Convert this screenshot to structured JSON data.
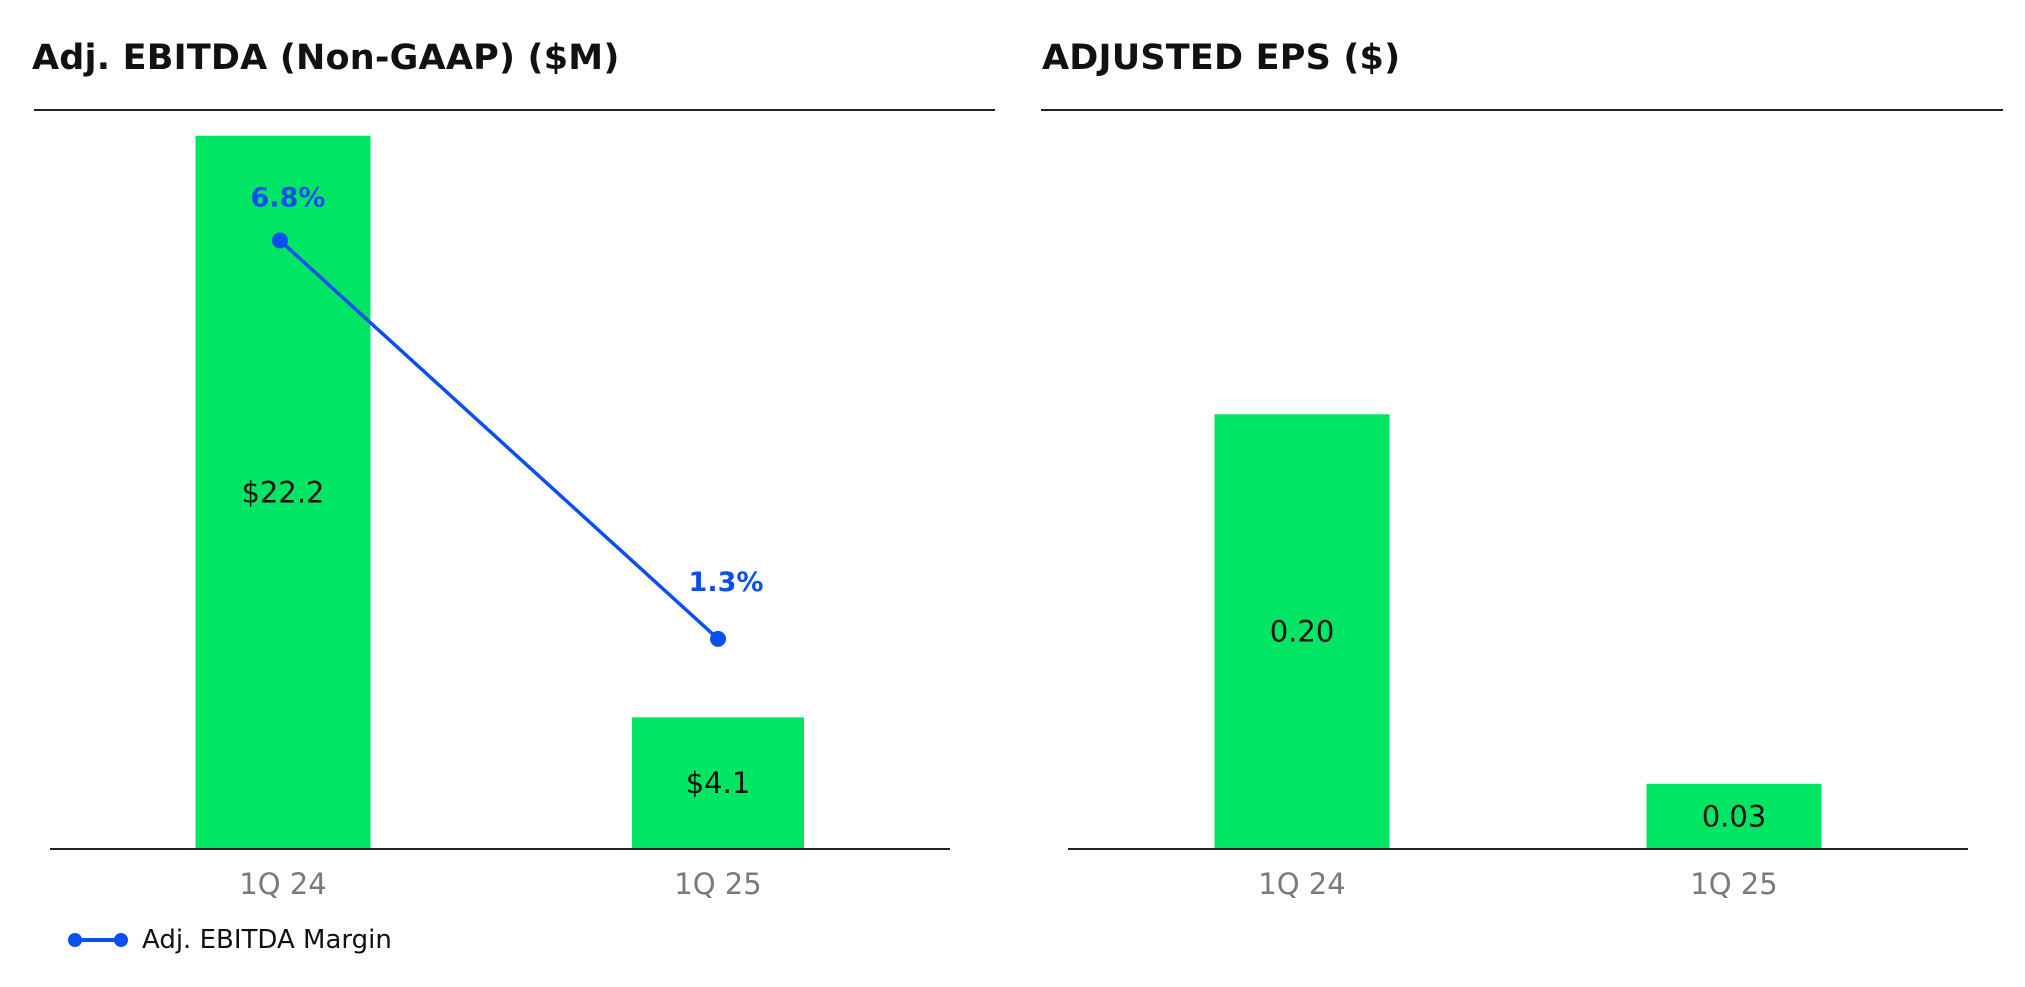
{
  "colors": {
    "bar": "#00E664",
    "line": "#0A50F0",
    "axis": "#222222",
    "tick_text": "#7A7A7A"
  },
  "legend": {
    "margin_label": "Adj. EBITDA Margin"
  },
  "chart_data": [
    {
      "type": "bar",
      "title": "Adj. EBITDA (Non-GAAP) ($M)",
      "categories": [
        "1Q24",
        "1Q25"
      ],
      "category_labels": [
        "1Q 24",
        "1Q 25"
      ],
      "values": [
        22.2,
        4.1
      ],
      "value_labels": [
        "$22.2",
        "$4.1"
      ],
      "ylim": [
        0,
        23
      ],
      "grid": false,
      "overlay_line": {
        "name": "Adj. EBITDA Margin",
        "values": [
          6.8,
          1.3
        ],
        "value_labels": [
          "6.8%",
          "1.3%"
        ],
        "ylim": [
          -1.6,
          8.6
        ]
      },
      "legend_position": "bottom-left"
    },
    {
      "type": "bar",
      "title": "ADJUSTED EPS ($)",
      "categories": [
        "1Q24",
        "1Q25"
      ],
      "category_labels": [
        "1Q 24",
        "1Q 25"
      ],
      "values": [
        0.2,
        0.03
      ],
      "value_labels": [
        "0.20",
        "0.03"
      ],
      "ylim": [
        0,
        0.34
      ],
      "grid": false
    }
  ]
}
